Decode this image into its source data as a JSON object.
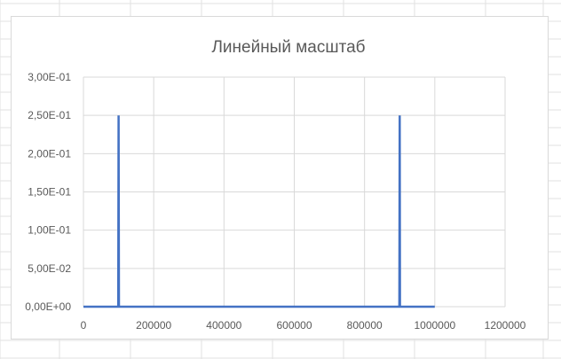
{
  "chart_data": {
    "type": "line",
    "title": "Линейный масштаб",
    "xlabel": "",
    "ylabel": "",
    "xlim": [
      0,
      1200000
    ],
    "ylim": [
      0,
      0.3
    ],
    "x_ticks": [
      0,
      200000,
      400000,
      600000,
      800000,
      1000000,
      1200000
    ],
    "x_tick_labels": [
      "0",
      "200000",
      "400000",
      "600000",
      "800000",
      "1000000",
      "1200000"
    ],
    "y_ticks": [
      0,
      0.05,
      0.1,
      0.15,
      0.2,
      0.25,
      0.3
    ],
    "y_tick_labels": [
      "0,00E+00",
      "5,00E-02",
      "1,00E-01",
      "1,50E-01",
      "2,00E-01",
      "2,50E-01",
      "3,00E-01"
    ],
    "grid": true,
    "legend": "none",
    "series": [
      {
        "color": "#4472c4",
        "x": [
          0,
          99000,
          100000,
          101000,
          899000,
          900000,
          901000,
          1000000
        ],
        "y": [
          0,
          0,
          0.25,
          0,
          0,
          0.25,
          0,
          0
        ]
      }
    ]
  },
  "colors": {
    "gridline": "#d9d9d9",
    "sheet_gridline": "#e2e2e2",
    "text": "#595959"
  }
}
